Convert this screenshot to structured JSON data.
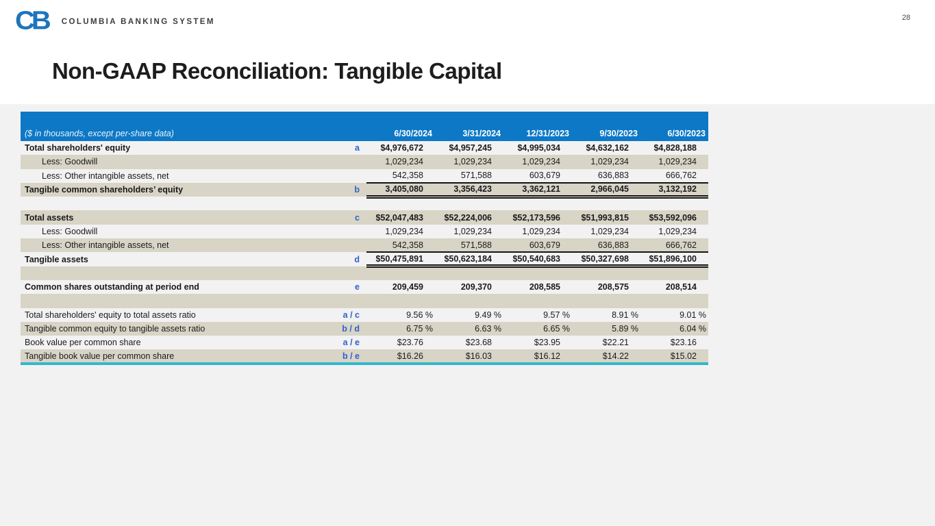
{
  "page": {
    "number": "28"
  },
  "brand": {
    "mark": "CB",
    "name": "COLUMBIA BANKING SYSTEM",
    "brand_blue": "#1c75bc"
  },
  "title": "Non-GAAP Reconciliation: Tangible Capital",
  "colors": {
    "header_bg": "#0d78c6",
    "row_alt_beige": "#d8d4c6",
    "accent_teal": "#31b7cd",
    "ref_blue": "#2e62c9"
  },
  "table": {
    "subtitle": "($ in thousands, except per-share data)",
    "columns": [
      "6/30/2024",
      "3/31/2024",
      "12/31/2023",
      "9/30/2023",
      "6/30/2023"
    ],
    "rows": [
      {
        "label": "Total shareholders' equity",
        "ref": "a",
        "values": [
          "$4,976,672",
          "$4,957,245",
          "$4,995,034",
          "$4,632,162",
          "$4,828,188"
        ]
      },
      {
        "label": "Less: Goodwill",
        "ref": "",
        "values": [
          "1,029,234",
          "1,029,234",
          "1,029,234",
          "1,029,234",
          "1,029,234"
        ]
      },
      {
        "label": "Less: Other intangible assets, net",
        "ref": "",
        "values": [
          "542,358",
          "571,588",
          "603,679",
          "636,883",
          "666,762"
        ]
      },
      {
        "label": "Tangible common shareholders’ equity",
        "ref": "b",
        "values": [
          "3,405,080",
          "3,356,423",
          "3,362,121",
          "2,966,045",
          "3,132,192"
        ]
      },
      {
        "label": "",
        "ref": "",
        "values": [
          "",
          "",
          "",
          "",
          ""
        ]
      },
      {
        "label": "Total assets",
        "ref": "c",
        "values": [
          "$52,047,483",
          "$52,224,006",
          "$52,173,596",
          "$51,993,815",
          "$53,592,096"
        ]
      },
      {
        "label": "Less: Goodwill",
        "ref": "",
        "values": [
          "1,029,234",
          "1,029,234",
          "1,029,234",
          "1,029,234",
          "1,029,234"
        ]
      },
      {
        "label": "Less: Other intangible assets, net",
        "ref": "",
        "values": [
          "542,358",
          "571,588",
          "603,679",
          "636,883",
          "666,762"
        ]
      },
      {
        "label": "Tangible assets",
        "ref": "d",
        "values": [
          "$50,475,891",
          "$50,623,184",
          "$50,540,683",
          "$50,327,698",
          "$51,896,100"
        ]
      },
      {
        "label": "",
        "ref": "",
        "values": [
          "",
          "",
          "",
          "",
          ""
        ]
      },
      {
        "label": "Common shares outstanding at period end",
        "ref": "e",
        "values": [
          "209,459",
          "209,370",
          "208,585",
          "208,575",
          "208,514"
        ]
      },
      {
        "label": "",
        "ref": "",
        "values": [
          "",
          "",
          "",
          "",
          ""
        ]
      },
      {
        "label": "Total shareholders' equity to total assets ratio",
        "ref": "a / c",
        "values": [
          "9.56 %",
          "9.49 %",
          "9.57 %",
          "8.91 %",
          "9.01 %"
        ]
      },
      {
        "label": "Tangible common equity to tangible assets ratio",
        "ref": "b / d",
        "values": [
          "6.75 %",
          "6.63 %",
          "6.65 %",
          "5.89 %",
          "6.04 %"
        ]
      },
      {
        "label": "Book value per common share",
        "ref": "a / e",
        "values": [
          "$23.76",
          "$23.68",
          "$23.95",
          "$22.21",
          "$23.16"
        ]
      },
      {
        "label": "Tangible book value per common share",
        "ref": "b / e",
        "values": [
          "$16.26",
          "$16.03",
          "$16.12",
          "$14.22",
          "$15.02"
        ]
      }
    ]
  }
}
